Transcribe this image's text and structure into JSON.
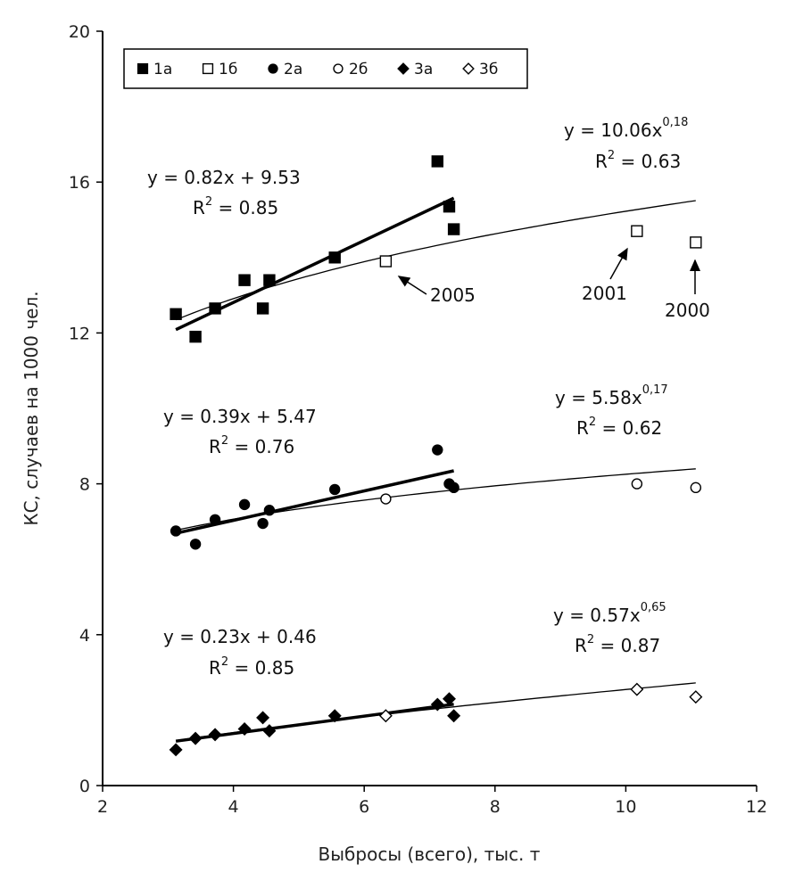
{
  "chart_data": {
    "type": "scatter",
    "title": "",
    "xlabel": "Выбросы (всего), тыс. т",
    "ylabel": "КС, случаев на 1000 чел.",
    "xlim": [
      2,
      12
    ],
    "ylim": [
      0,
      20
    ],
    "xticks": [
      2,
      4,
      6,
      8,
      10,
      12
    ],
    "yticks": [
      0,
      4,
      8,
      12,
      16,
      20
    ],
    "grid": false,
    "legend_position": "top-left",
    "legend": [
      {
        "key": "1a",
        "label": "1а",
        "marker": "square",
        "filled": true
      },
      {
        "key": "1b",
        "label": "1б",
        "marker": "square",
        "filled": false
      },
      {
        "key": "2a",
        "label": "2а",
        "marker": "circle",
        "filled": true
      },
      {
        "key": "2b",
        "label": "2б",
        "marker": "circle",
        "filled": false
      },
      {
        "key": "3a",
        "label": "3а",
        "marker": "diamond",
        "filled": true
      },
      {
        "key": "3b",
        "label": "3б",
        "marker": "diamond",
        "filled": false
      }
    ],
    "series": [
      {
        "name": "1а",
        "marker": "square",
        "filled": true,
        "x": [
          3.12,
          3.42,
          3.72,
          4.17,
          4.45,
          4.55,
          5.55,
          7.12,
          7.3,
          7.37
        ],
        "y": [
          12.5,
          11.9,
          12.65,
          13.4,
          12.65,
          13.4,
          14.0,
          16.55,
          15.35,
          14.75
        ]
      },
      {
        "name": "1б",
        "marker": "square",
        "filled": false,
        "x": [
          6.33,
          10.17,
          11.07
        ],
        "y": [
          13.9,
          14.7,
          14.4
        ]
      },
      {
        "name": "2а",
        "marker": "circle",
        "filled": true,
        "x": [
          3.12,
          3.42,
          3.72,
          4.17,
          4.45,
          4.55,
          5.55,
          7.12,
          7.3,
          7.37
        ],
        "y": [
          6.75,
          6.4,
          7.05,
          7.45,
          6.95,
          7.3,
          7.85,
          8.9,
          8.0,
          7.9
        ]
      },
      {
        "name": "2б",
        "marker": "circle",
        "filled": false,
        "x": [
          6.33,
          10.17,
          11.07
        ],
        "y": [
          7.6,
          8.0,
          7.9
        ]
      },
      {
        "name": "3а",
        "marker": "diamond",
        "filled": true,
        "x": [
          3.12,
          3.42,
          3.72,
          4.17,
          4.45,
          4.55,
          5.55,
          7.12,
          7.3,
          7.37
        ],
        "y": [
          0.95,
          1.25,
          1.35,
          1.5,
          1.8,
          1.45,
          1.85,
          2.15,
          2.3,
          1.85
        ]
      },
      {
        "name": "3б",
        "marker": "diamond",
        "filled": false,
        "x": [
          6.33,
          10.17,
          11.07
        ],
        "y": [
          1.85,
          2.55,
          2.35
        ]
      }
    ],
    "trendlines": [
      {
        "name": "1-linear",
        "kind": "linear",
        "slope": 0.82,
        "intercept": 9.53,
        "x_range": [
          3.12,
          7.37
        ],
        "bold": true
      },
      {
        "name": "1-power",
        "kind": "power",
        "coef": 10.06,
        "exp": 0.18,
        "x_range": [
          3.12,
          11.07
        ],
        "bold": false
      },
      {
        "name": "2-linear",
        "kind": "linear",
        "slope": 0.39,
        "intercept": 5.47,
        "x_range": [
          3.12,
          7.37
        ],
        "bold": true
      },
      {
        "name": "2-power",
        "kind": "power",
        "coef": 5.58,
        "exp": 0.17,
        "x_range": [
          3.12,
          11.07
        ],
        "bold": false
      },
      {
        "name": "3-linear",
        "kind": "linear",
        "slope": 0.23,
        "intercept": 0.46,
        "x_range": [
          3.12,
          7.37
        ],
        "bold": true
      },
      {
        "name": "3-power",
        "kind": "power",
        "coef": 0.57,
        "exp": 0.65,
        "x_range": [
          3.12,
          11.07
        ],
        "bold": false
      }
    ],
    "equations": {
      "eq1_lin": {
        "main": "y  = 0.82x  + 9.53",
        "r2_label": "R",
        "r2_sup": "2",
        "r2_value": " = 0.85"
      },
      "eq1_pow": {
        "main": "y  = 10.06x",
        "sup": "0,18",
        "r2_label": "R",
        "r2_sup": "2",
        "r2_value": " = 0.63"
      },
      "eq2_lin": {
        "main": "y  = 0.39x  + 5.47",
        "r2_label": "R",
        "r2_sup": "2",
        "r2_value": " = 0.76"
      },
      "eq2_pow": {
        "main": "y  = 5.58x",
        "sup": "0,17",
        "r2_label": "R",
        "r2_sup": "2",
        "r2_value": " = 0.62"
      },
      "eq3_lin": {
        "main": "y  = 0.23x  + 0.46",
        "r2_label": "R",
        "r2_sup": "2",
        "r2_value": " = 0.85"
      },
      "eq3_pow": {
        "main": "y  = 0.57x",
        "sup": "0,65",
        "r2_label": "R",
        "r2_sup": "2",
        "r2_value": " = 0.87"
      }
    },
    "annotations": [
      {
        "text": "2005",
        "points_to_x": 6.33,
        "points_to_y": 13.9
      },
      {
        "text": "2001",
        "points_to_x": 10.17,
        "points_to_y": 14.7
      },
      {
        "text": "2000",
        "points_to_x": 11.07,
        "points_to_y": 14.4
      }
    ]
  }
}
